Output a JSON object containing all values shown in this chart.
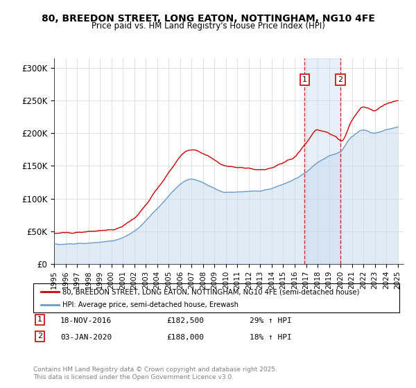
{
  "title": "80, BREEDON STREET, LONG EATON, NOTTINGHAM, NG10 4FE",
  "subtitle": "Price paid vs. HM Land Registry's House Price Index (HPI)",
  "ylabel_ticks": [
    "£0",
    "£50K",
    "£100K",
    "£150K",
    "£200K",
    "£250K",
    "£300K"
  ],
  "ytick_vals": [
    0,
    50000,
    100000,
    150000,
    200000,
    250000,
    300000
  ],
  "ylim": [
    0,
    315000
  ],
  "red_color": "#cc0000",
  "blue_color": "#6699cc",
  "blue_fill": "#c5d8ef",
  "marker1_date_idx": 21.9,
  "marker2_date_idx": 25.0,
  "marker1_label": "1",
  "marker2_label": "2",
  "legend1": "80, BREEDON STREET, LONG EATON, NOTTINGHAM, NG10 4FE (semi-detached house)",
  "legend2": "HPI: Average price, semi-detached house, Erewash",
  "note1_num": "1",
  "note1_date": "18-NOV-2016",
  "note1_price": "£182,500",
  "note1_hpi": "29% ↑ HPI",
  "note2_num": "2",
  "note2_date": "03-JAN-2020",
  "note2_price": "£188,000",
  "note2_hpi": "18% ↑ HPI",
  "footer": "Contains HM Land Registry data © Crown copyright and database right 2025.\nThis data is licensed under the Open Government Licence v3.0.",
  "start_year": 1995,
  "end_year": 2025
}
